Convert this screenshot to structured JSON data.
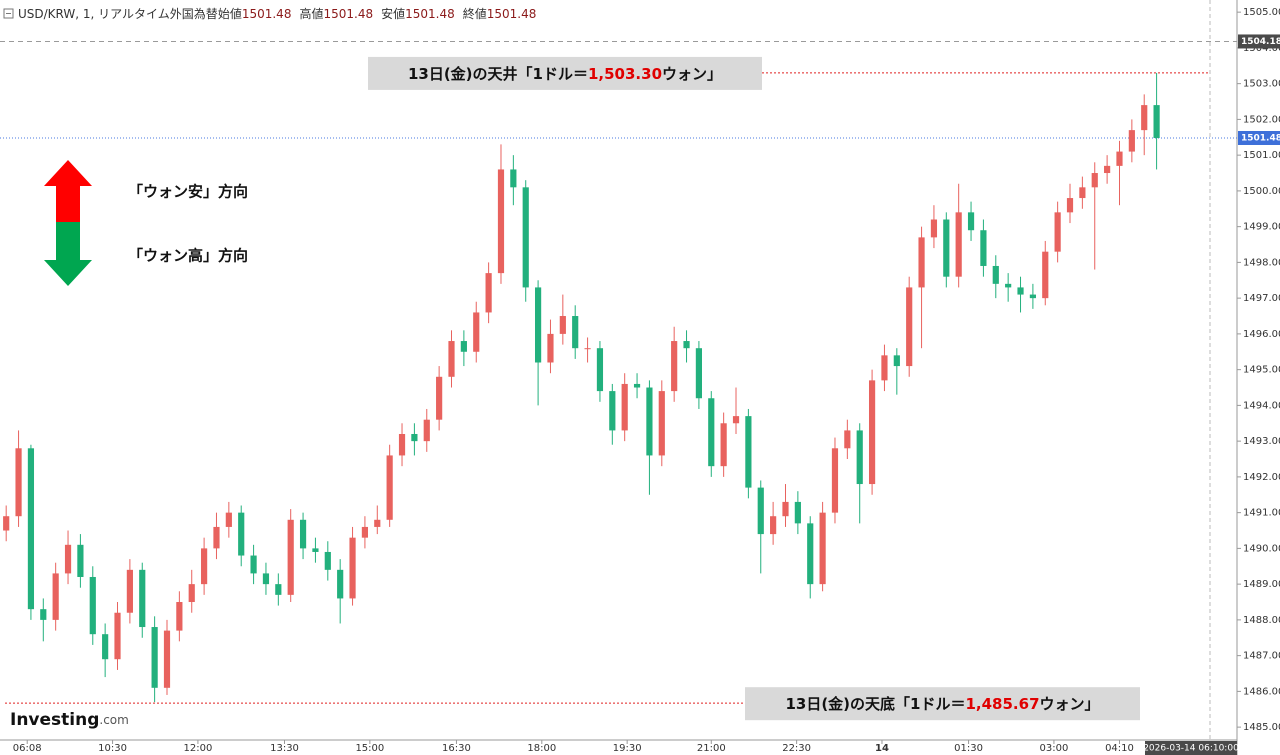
{
  "chart_data": {
    "type": "candlestick",
    "header": {
      "symbol": "USD/KRW, 1, リアルタイム外国為替",
      "fields": [
        {
          "name": "始値",
          "value": 1501.48
        },
        {
          "name": "高値",
          "value": 1501.48
        },
        {
          "name": "安値",
          "value": 1501.48
        },
        {
          "name": "終値",
          "value": 1501.48
        }
      ]
    },
    "up_color": "#e8625e",
    "down_color": "#22b07d",
    "open": [
      1490.5,
      1490.9,
      1492.8,
      1488.3,
      1488.0,
      1489.3,
      1490.1,
      1489.2,
      1487.6,
      1486.9,
      1488.2,
      1489.4,
      1487.8,
      1486.1,
      1487.7,
      1488.5,
      1489.0,
      1490.0,
      1490.6,
      1491.0,
      1489.8,
      1489.3,
      1489.0,
      1488.7,
      1490.8,
      1490.0,
      1489.9,
      1489.4,
      1488.6,
      1490.3,
      1490.6,
      1490.8,
      1492.6,
      1493.2,
      1493.0,
      1493.6,
      1494.8,
      1495.8,
      1495.5,
      1496.6,
      1497.7,
      1500.6,
      1500.1,
      1497.3,
      1495.2,
      1496.0,
      1496.5,
      1495.6,
      1495.6,
      1494.4,
      1493.3,
      1494.6,
      1494.5,
      1492.6,
      1494.4,
      1495.8,
      1495.6,
      1494.2,
      1492.3,
      1493.5,
      1493.7,
      1491.7,
      1490.4,
      1490.9,
      1491.3,
      1490.7,
      1489.0,
      1491.0,
      1492.8,
      1493.3,
      1491.8,
      1494.7,
      1495.4,
      1495.1,
      1497.3,
      1498.7,
      1499.2,
      1497.6,
      1499.4,
      1498.9,
      1497.9,
      1497.4,
      1497.3,
      1497.1,
      1497.0,
      1498.3,
      1499.4,
      1499.8,
      1500.1,
      1500.5,
      1500.7,
      1501.1,
      1501.7,
      1502.4
    ],
    "high": [
      1491.2,
      1493.3,
      1492.9,
      1488.6,
      1489.6,
      1490.5,
      1490.4,
      1489.5,
      1487.9,
      1488.5,
      1489.7,
      1489.6,
      1488.1,
      1488.0,
      1488.8,
      1489.4,
      1490.3,
      1491.0,
      1491.3,
      1491.2,
      1490.1,
      1489.6,
      1489.3,
      1491.1,
      1491.0,
      1490.3,
      1490.2,
      1489.7,
      1490.6,
      1490.9,
      1491.2,
      1492.9,
      1493.5,
      1493.5,
      1493.9,
      1495.1,
      1496.1,
      1496.1,
      1496.9,
      1498.0,
      1501.3,
      1501.0,
      1500.3,
      1497.5,
      1496.4,
      1497.1,
      1496.8,
      1495.9,
      1495.8,
      1494.6,
      1494.9,
      1494.9,
      1494.7,
      1494.7,
      1496.2,
      1496.1,
      1495.8,
      1494.4,
      1493.8,
      1494.5,
      1493.9,
      1491.9,
      1491.3,
      1491.8,
      1491.6,
      1490.9,
      1491.3,
      1493.1,
      1493.6,
      1493.5,
      1495.0,
      1495.7,
      1495.6,
      1497.6,
      1499.0,
      1499.6,
      1499.4,
      1500.2,
      1499.7,
      1499.2,
      1498.2,
      1497.7,
      1497.6,
      1497.4,
      1498.6,
      1499.7,
      1500.2,
      1500.4,
      1500.8,
      1501.0,
      1501.4,
      1502.0,
      1502.7,
      1503.3
    ],
    "low": [
      1490.2,
      1490.6,
      1488.0,
      1487.4,
      1487.7,
      1489.0,
      1488.9,
      1487.3,
      1486.4,
      1486.6,
      1487.9,
      1487.5,
      1485.7,
      1485.9,
      1487.4,
      1488.2,
      1488.7,
      1489.7,
      1490.3,
      1489.5,
      1489.0,
      1488.7,
      1488.4,
      1488.5,
      1489.7,
      1489.6,
      1489.1,
      1487.9,
      1488.4,
      1490.0,
      1490.4,
      1490.6,
      1492.3,
      1492.6,
      1492.7,
      1493.3,
      1494.5,
      1495.1,
      1495.2,
      1496.3,
      1497.4,
      1499.6,
      1496.9,
      1494.0,
      1494.9,
      1495.7,
      1495.3,
      1495.2,
      1494.1,
      1492.9,
      1493.0,
      1494.2,
      1491.5,
      1492.3,
      1494.1,
      1495.2,
      1493.9,
      1492.0,
      1492.0,
      1493.2,
      1491.4,
      1489.3,
      1490.1,
      1490.6,
      1490.4,
      1488.6,
      1488.8,
      1490.7,
      1492.5,
      1490.7,
      1491.5,
      1494.4,
      1494.3,
      1494.8,
      1495.6,
      1498.4,
      1497.3,
      1497.3,
      1498.6,
      1497.6,
      1497.0,
      1496.9,
      1496.6,
      1496.7,
      1496.8,
      1498.0,
      1499.1,
      1499.5,
      1497.8,
      1500.2,
      1499.6,
      1500.8,
      1501.0,
      1500.6
    ],
    "close": [
      1490.9,
      1492.8,
      1488.3,
      1488.0,
      1489.3,
      1490.1,
      1489.2,
      1487.6,
      1486.9,
      1488.2,
      1489.4,
      1487.8,
      1486.1,
      1487.7,
      1488.5,
      1489.0,
      1490.0,
      1490.6,
      1491.0,
      1489.8,
      1489.3,
      1489.0,
      1488.7,
      1490.8,
      1490.0,
      1489.9,
      1489.4,
      1488.6,
      1490.3,
      1490.6,
      1490.8,
      1492.6,
      1493.2,
      1493.0,
      1493.6,
      1494.8,
      1495.8,
      1495.5,
      1496.6,
      1497.7,
      1500.6,
      1500.1,
      1497.3,
      1495.2,
      1496.0,
      1496.5,
      1495.6,
      1495.6,
      1494.4,
      1493.3,
      1494.6,
      1494.5,
      1492.6,
      1494.4,
      1495.8,
      1495.6,
      1494.2,
      1492.3,
      1493.5,
      1493.7,
      1491.7,
      1490.4,
      1490.9,
      1491.3,
      1490.7,
      1489.0,
      1491.0,
      1492.8,
      1493.3,
      1491.8,
      1494.7,
      1495.4,
      1495.1,
      1497.3,
      1498.7,
      1499.2,
      1497.6,
      1499.4,
      1498.9,
      1497.9,
      1497.4,
      1497.3,
      1497.1,
      1497.0,
      1498.3,
      1499.4,
      1499.8,
      1500.1,
      1500.5,
      1500.7,
      1501.1,
      1501.7,
      1502.4,
      1501.48
    ],
    "xlim": [
      0,
      100
    ],
    "xticks": [
      {
        "value": 2.2,
        "label": "06:08"
      },
      {
        "value": 9.1,
        "label": "10:30"
      },
      {
        "value": 16.0,
        "label": "12:00"
      },
      {
        "value": 23.0,
        "label": "13:30"
      },
      {
        "value": 29.9,
        "label": "15:00"
      },
      {
        "value": 36.9,
        "label": "16:30"
      },
      {
        "value": 43.8,
        "label": "18:00"
      },
      {
        "value": 50.7,
        "label": "19:30"
      },
      {
        "value": 57.5,
        "label": "21:00"
      },
      {
        "value": 64.4,
        "label": "22:30"
      },
      {
        "value": 71.3,
        "label": "14"
      },
      {
        "value": 78.3,
        "label": "01:30"
      },
      {
        "value": 85.2,
        "label": "03:00"
      },
      {
        "value": 90.5,
        "label": "04:10"
      }
    ],
    "x_cursor_label": "2026-03-14 06:10:00",
    "ylim": [
      1484.64,
      1505.34
    ],
    "yticks": [
      {
        "value": 1485,
        "label": "1485.00"
      },
      {
        "value": 1486,
        "label": "1486.00"
      },
      {
        "value": 1487,
        "label": "1487.00"
      },
      {
        "value": 1488,
        "label": "1488.00"
      },
      {
        "value": 1489,
        "label": "1489.00"
      },
      {
        "value": 1490,
        "label": "1490.00"
      },
      {
        "value": 1491,
        "label": "1491.00"
      },
      {
        "value": 1492,
        "label": "1492.00"
      },
      {
        "value": 1493,
        "label": "1493.00"
      },
      {
        "value": 1494,
        "label": "1494.00"
      },
      {
        "value": 1495,
        "label": "1495.00"
      },
      {
        "value": 1496,
        "label": "1496.00"
      },
      {
        "value": 1497,
        "label": "1497.00"
      },
      {
        "value": 1498,
        "label": "1498.00"
      },
      {
        "value": 1499,
        "label": "1499.00"
      },
      {
        "value": 1500,
        "label": "1500.00"
      },
      {
        "value": 1501,
        "label": "1501.00"
      },
      {
        "value": 1502,
        "label": "1502.00"
      },
      {
        "value": 1503,
        "label": "1503.00"
      },
      {
        "value": 1504,
        "label": "1504.00"
      },
      {
        "value": 1505,
        "label": "1505.00"
      }
    ],
    "price_lines": [
      {
        "value": 1504.18,
        "color": "#9a9a9a",
        "label_bg": "#4a4a4a"
      },
      {
        "value": 1501.48,
        "color": "#4a78e0",
        "label_bg": "#3d6fd9"
      }
    ],
    "annotations": [
      {
        "before": "13日(金)の天井「1ドル＝",
        "value": 1503.3,
        "label": "1,503.30",
        "after": "ウォン」"
      },
      {
        "before": "13日(金)の天底「1ドル＝",
        "value": 1485.67,
        "label": "1,485.67",
        "after": "ウォン」"
      }
    ],
    "arrows": [
      {
        "name": "「ウォン安」方向",
        "color": "#ff0000"
      },
      {
        "name": "「ウォン高」方向",
        "color": "#00a650"
      }
    ],
    "watermark": {
      "brand": "Investing",
      "suffix": ".com"
    }
  }
}
